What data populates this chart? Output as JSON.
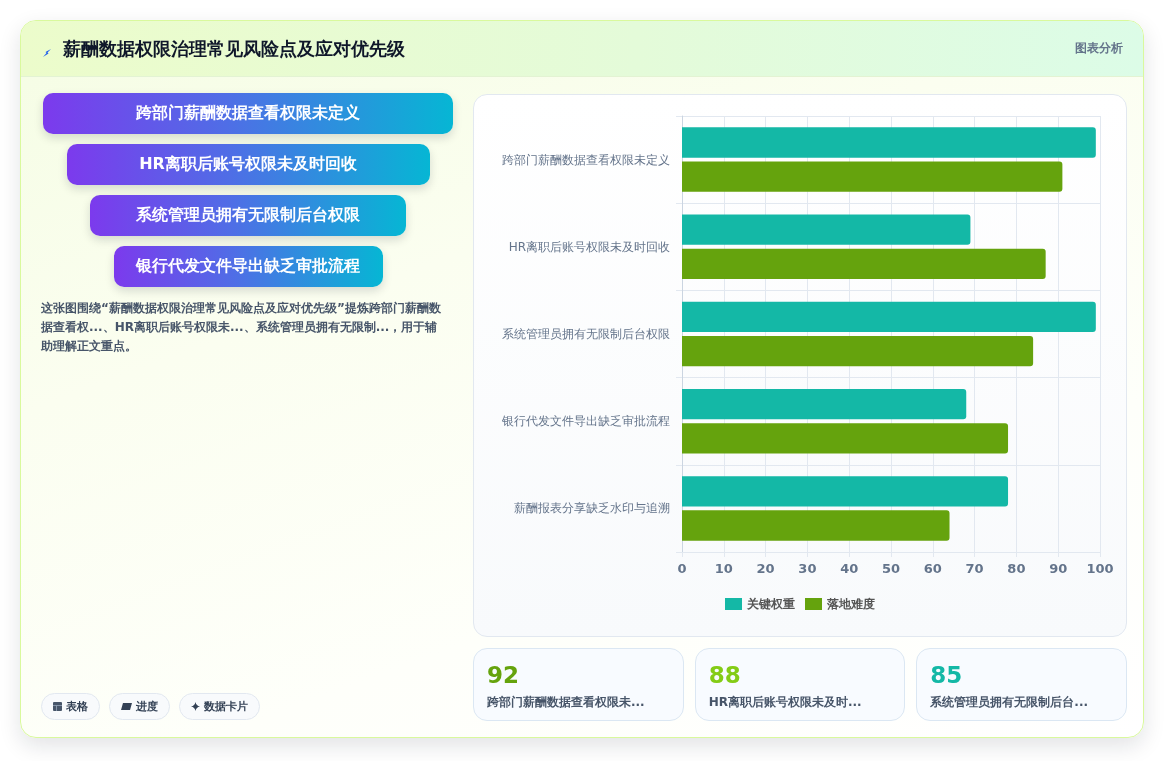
{
  "chart_data": [
    {
      "type": "other",
      "title": "薪酬数据权限治理常见风险点及应对优先级",
      "subtitle": "图表分析",
      "categories": [
        "跨部门薪酬数据查看权限未定义",
        "HR离职后账号权限未及时回收",
        "系统管理员拥有无限制后台权限",
        "银行代发文件导出缺乏审批流程"
      ],
      "annotations": [
        "这张图围绕“薪酬数据权限治理常见风险点及应对优先级”提炼跨部门薪酬数据查看权...、HR离职后账号权限未...、系统管理员拥有无限制...，用于辅助理解正文重点。",
        "表格",
        "进度",
        "数据卡片"
      ]
    },
    {
      "type": "bar",
      "orientation": "horizontal",
      "categories": [
        "跨部门薪酬数据查看权限未定义",
        "HR离职后账号权限未及时回收",
        "系统管理员拥有无限制后台权限",
        "银行代发文件导出缺乏审批流程",
        "薪酬报表分享缺乏水印与追溯"
      ],
      "series": [
        {
          "name": "关键权重",
          "color": "#14b8a6",
          "values": [
            99,
            69,
            99,
            68,
            78
          ]
        },
        {
          "name": "落地难度",
          "color": "#65a30d",
          "values": [
            91,
            87,
            84,
            78,
            64
          ]
        }
      ],
      "xlim": [
        0,
        100
      ],
      "xticks": [
        0,
        10,
        20,
        30,
        40,
        50,
        60,
        70,
        80,
        90,
        100
      ],
      "grid": true,
      "legend": "bottom"
    },
    {
      "type": "other",
      "annotations": [
        "92",
        "跨部门薪酬数据查看权限未...",
        "88",
        "HR离职后账号权限未及时...",
        "85",
        "系统管理员拥有无限制后台..."
      ]
    }
  ]
}
